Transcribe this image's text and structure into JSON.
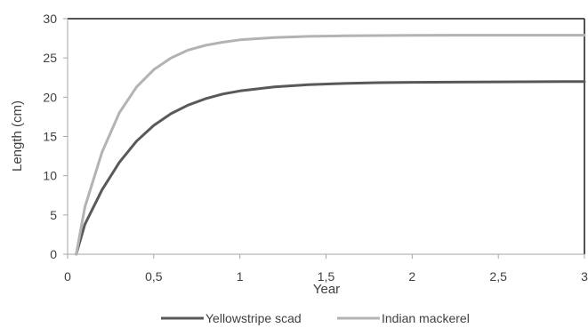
{
  "chart_data": {
    "type": "line",
    "title": "",
    "xlabel": "Year",
    "ylabel": "Length (cm)",
    "xlim": [
      0,
      3
    ],
    "ylim": [
      0,
      30
    ],
    "x_ticks": [
      0,
      0.5,
      1,
      1.5,
      2,
      2.5,
      3
    ],
    "x_tick_labels": [
      "0",
      "0,5",
      "1",
      "1,5",
      "2",
      "2,5",
      "3"
    ],
    "y_ticks": [
      0,
      5,
      10,
      15,
      20,
      25,
      30
    ],
    "y_tick_labels": [
      "0",
      "5",
      "10",
      "15",
      "20",
      "25",
      "30"
    ],
    "grid": false,
    "legend_position": "bottom",
    "x": [
      0.05,
      0.1,
      0.2,
      0.3,
      0.4,
      0.5,
      0.6,
      0.7,
      0.8,
      0.9,
      1.0,
      1.2,
      1.4,
      1.6,
      1.8,
      2.0,
      2.5,
      3.0
    ],
    "series": [
      {
        "name": "Yellowstripe scad",
        "color": "#595959",
        "values": [
          0,
          3.8,
          8.2,
          11.7,
          14.4,
          16.4,
          17.9,
          19.0,
          19.8,
          20.4,
          20.8,
          21.3,
          21.6,
          21.75,
          21.85,
          21.9,
          21.95,
          22.0
        ]
      },
      {
        "name": "Indian mackerel",
        "color": "#b3b3b3",
        "values": [
          0,
          6.0,
          13.0,
          18.0,
          21.3,
          23.5,
          25.0,
          26.0,
          26.6,
          27.0,
          27.3,
          27.6,
          27.75,
          27.82,
          27.85,
          27.88,
          27.9,
          27.9
        ]
      }
    ]
  }
}
